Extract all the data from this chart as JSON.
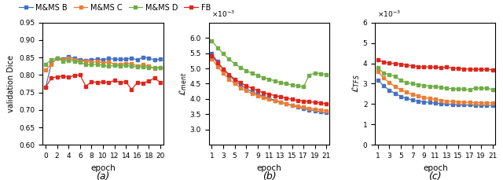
{
  "colors": {
    "B": "#4472C4",
    "C": "#ED7D31",
    "D": "#70AD47",
    "FB": "#E0261A"
  },
  "legend_labels": [
    "M&MS B",
    "M&MS C",
    "M&MS D",
    "FB"
  ],
  "subplot_a": {
    "xlabel": "epoch",
    "ylabel": "validation Dice",
    "ylim": [
      0.6,
      0.95
    ],
    "yticks": [
      0.6,
      0.65,
      0.7,
      0.75,
      0.8,
      0.85,
      0.9,
      0.95
    ],
    "xticks": [
      0,
      2,
      4,
      6,
      8,
      10,
      12,
      14,
      16,
      18,
      20
    ],
    "B": [
      0.764,
      0.833,
      0.848,
      0.845,
      0.852,
      0.847,
      0.844,
      0.842,
      0.844,
      0.845,
      0.843,
      0.847,
      0.845,
      0.845,
      0.845,
      0.848,
      0.843,
      0.851,
      0.848,
      0.843,
      0.845
    ],
    "C": [
      0.814,
      0.831,
      0.848,
      0.843,
      0.847,
      0.843,
      0.84,
      0.84,
      0.836,
      0.838,
      0.835,
      0.837,
      0.831,
      0.83,
      0.833,
      0.832,
      0.826,
      0.829,
      0.825,
      0.819,
      0.821
    ],
    "D": [
      0.831,
      0.843,
      0.849,
      0.84,
      0.841,
      0.84,
      0.836,
      0.83,
      0.829,
      0.831,
      0.827,
      0.825,
      0.827,
      0.826,
      0.827,
      0.825,
      0.823,
      0.823,
      0.821,
      0.821,
      0.821
    ],
    "FB": [
      0.765,
      0.791,
      0.795,
      0.797,
      0.793,
      0.799,
      0.8,
      0.768,
      0.78,
      0.779,
      0.78,
      0.779,
      0.784,
      0.779,
      0.781,
      0.758,
      0.779,
      0.776,
      0.783,
      0.791,
      0.779
    ]
  },
  "subplot_b": {
    "xlabel": "epoch",
    "ylabel": "$\\mathcal{L}_{ment}$",
    "ylim": [
      2.5,
      6.5
    ],
    "yticks": [
      3.0,
      3.5,
      4.0,
      4.5,
      5.0,
      5.5,
      6.0
    ],
    "xticks": [
      1,
      3,
      5,
      7,
      9,
      11,
      13,
      15,
      17,
      19,
      21
    ],
    "B": [
      5.48,
      5.22,
      4.98,
      4.78,
      4.6,
      4.46,
      4.34,
      4.24,
      4.16,
      4.08,
      4.02,
      3.96,
      3.9,
      3.84,
      3.79,
      3.74,
      3.69,
      3.65,
      3.62,
      3.58,
      3.55
    ],
    "C": [
      5.32,
      5.06,
      4.84,
      4.65,
      4.5,
      4.37,
      4.27,
      4.18,
      4.11,
      4.05,
      3.99,
      3.94,
      3.89,
      3.84,
      3.8,
      3.76,
      3.73,
      3.7,
      3.67,
      3.65,
      3.62
    ],
    "D": [
      5.9,
      5.68,
      5.48,
      5.3,
      5.15,
      5.03,
      4.93,
      4.84,
      4.77,
      4.7,
      4.65,
      4.59,
      4.54,
      4.5,
      4.46,
      4.43,
      4.4,
      4.78,
      4.85,
      4.83,
      4.8
    ],
    "FB": [
      5.42,
      5.18,
      4.98,
      4.8,
      4.65,
      4.53,
      4.43,
      4.35,
      4.27,
      4.21,
      4.16,
      4.11,
      4.07,
      4.03,
      3.99,
      3.96,
      3.93,
      3.91,
      3.89,
      3.87,
      3.85
    ]
  },
  "subplot_c": {
    "xlabel": "epoch",
    "ylabel": "$\\mathcal{L}_{TFS}$",
    "ylim": [
      0.0,
      6.0
    ],
    "yticks": [
      0,
      1,
      2,
      3,
      4,
      5,
      6
    ],
    "xticks": [
      1,
      3,
      5,
      7,
      9,
      11,
      13,
      15,
      17,
      19,
      21
    ],
    "B": [
      3.18,
      2.9,
      2.68,
      2.52,
      2.38,
      2.28,
      2.2,
      2.15,
      2.11,
      2.08,
      2.05,
      2.02,
      2.0,
      1.99,
      1.97,
      1.96,
      1.96,
      1.95,
      1.95,
      1.95,
      1.94
    ],
    "C": [
      3.58,
      3.28,
      3.05,
      2.86,
      2.7,
      2.58,
      2.47,
      2.4,
      2.33,
      2.27,
      2.23,
      2.19,
      2.15,
      2.13,
      2.11,
      2.09,
      2.08,
      2.07,
      2.07,
      2.06,
      2.06
    ],
    "D": [
      3.78,
      3.52,
      3.45,
      3.35,
      3.16,
      3.05,
      3.0,
      2.96,
      2.92,
      2.88,
      2.86,
      2.82,
      2.77,
      2.76,
      2.74,
      2.73,
      2.71,
      2.8,
      2.77,
      2.79,
      2.71
    ],
    "FB": [
      4.18,
      4.05,
      4.02,
      3.98,
      3.96,
      3.91,
      3.88,
      3.84,
      3.81,
      3.83,
      3.81,
      3.79,
      3.81,
      3.77,
      3.75,
      3.73,
      3.71,
      3.7,
      3.7,
      3.7,
      3.68
    ]
  }
}
